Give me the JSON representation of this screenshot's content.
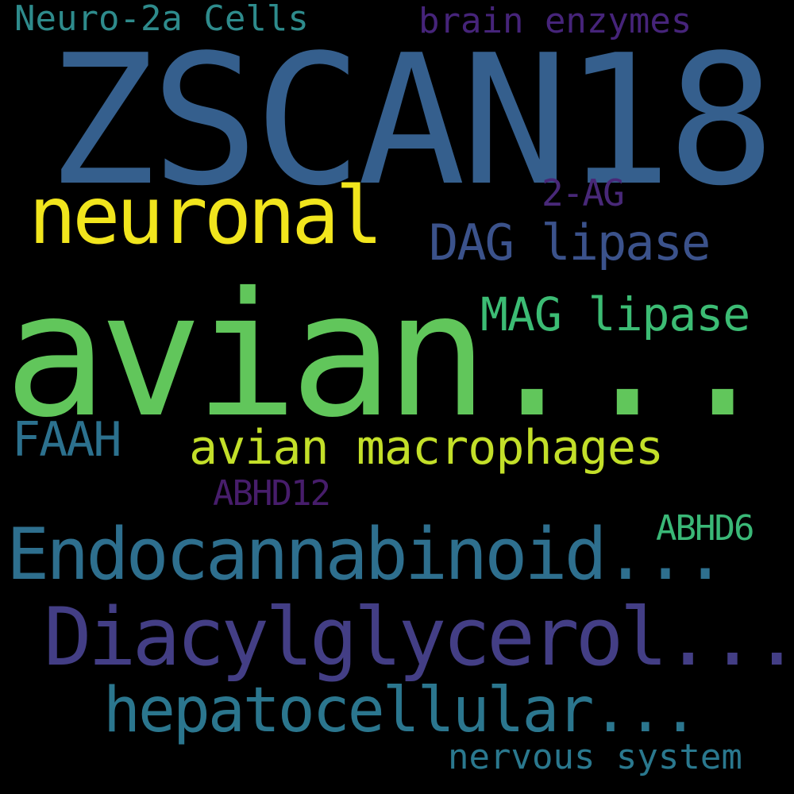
{
  "word_cloud": {
    "background_color": "#000000",
    "words": [
      {
        "text": "ZSCAN18",
        "color": "#355f8d"
      },
      {
        "text": "avian...",
        "color": "#61c65b"
      },
      {
        "text": "neuronal",
        "color": "#f1e51d"
      },
      {
        "text": "Endocannabinoid...",
        "color": "#2e6f8e"
      },
      {
        "text": "Diacylglycerol...",
        "color": "#433e85"
      },
      {
        "text": "hepatocellular...",
        "color": "#2b768e"
      },
      {
        "text": "avian macrophages",
        "color": "#c3df29"
      },
      {
        "text": "DAG lipase",
        "color": "#3b528b"
      },
      {
        "text": "MAG lipase",
        "color": "#3cbc74"
      },
      {
        "text": "FAAH",
        "color": "#2c718e"
      },
      {
        "text": "Neuro-2a Cells",
        "color": "#2e8b8c"
      },
      {
        "text": "brain enzymes",
        "color": "#46247a"
      },
      {
        "text": "nervous system",
        "color": "#2a788e"
      },
      {
        "text": "2-AG",
        "color": "#482878"
      },
      {
        "text": "ABHD12",
        "color": "#471d6b"
      },
      {
        "text": "ABHD6",
        "color": "#3ab877"
      }
    ]
  }
}
